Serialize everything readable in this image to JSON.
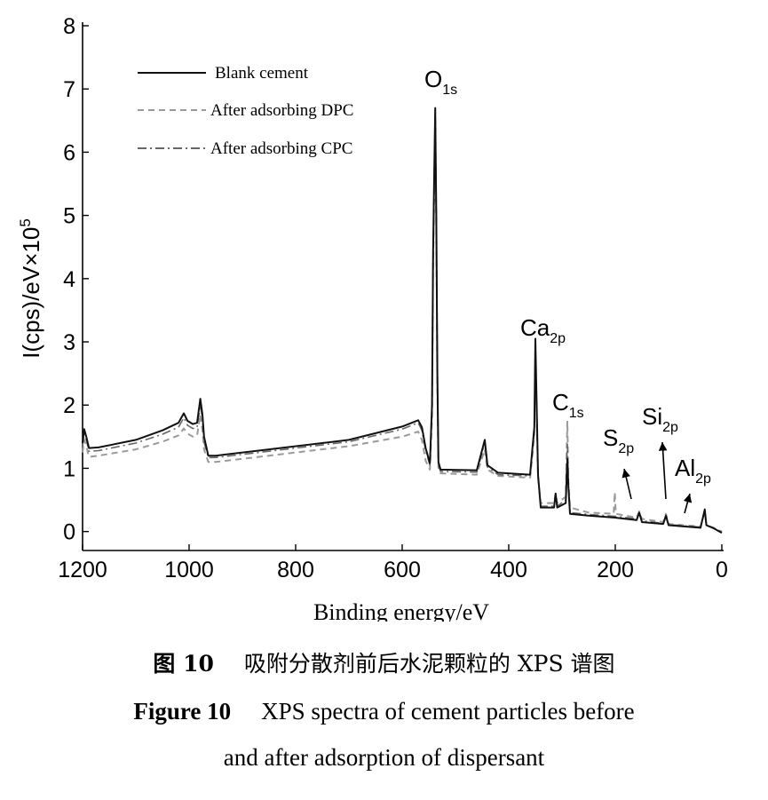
{
  "chart_data": {
    "type": "line",
    "xlabel": "Binding energy/eV",
    "ylabel_main": "I(cps)/eV×10",
    "ylabel_exp": "5",
    "xlim": [
      1200,
      0
    ],
    "ylim": [
      -0.3,
      8
    ],
    "x_ticks": [
      1200,
      1000,
      800,
      600,
      400,
      200,
      0
    ],
    "y_ticks": [
      0,
      1,
      2,
      3,
      4,
      5,
      6,
      7,
      8
    ],
    "legend": [
      {
        "name": "Blank cement",
        "style": "solid"
      },
      {
        "name": "After adsorbing DPC",
        "style": "dashed"
      },
      {
        "name": "After adsorbing CPC",
        "style": "dashdot"
      }
    ],
    "series": [
      {
        "name": "Blank cement",
        "points": [
          [
            1200,
            1.4
          ],
          [
            1197,
            1.62
          ],
          [
            1193,
            1.5
          ],
          [
            1188,
            1.32
          ],
          [
            1170,
            1.33
          ],
          [
            1100,
            1.45
          ],
          [
            1050,
            1.6
          ],
          [
            1020,
            1.72
          ],
          [
            1010,
            1.87
          ],
          [
            1003,
            1.75
          ],
          [
            993,
            1.7
          ],
          [
            985,
            1.72
          ],
          [
            979,
            2.1
          ],
          [
            975,
            1.85
          ],
          [
            972,
            1.5
          ],
          [
            964,
            1.2
          ],
          [
            950,
            1.2
          ],
          [
            850,
            1.3
          ],
          [
            700,
            1.45
          ],
          [
            600,
            1.66
          ],
          [
            570,
            1.76
          ],
          [
            563,
            1.65
          ],
          [
            556,
            1.32
          ],
          [
            548,
            1.08
          ],
          [
            544,
            2.0
          ],
          [
            542,
            4.4
          ],
          [
            540,
            5.6
          ],
          [
            538,
            6.7
          ],
          [
            536,
            5.0
          ],
          [
            534,
            2.5
          ],
          [
            532,
            1.1
          ],
          [
            528,
            0.98
          ],
          [
            460,
            0.97
          ],
          [
            445,
            1.45
          ],
          [
            440,
            1.05
          ],
          [
            420,
            0.93
          ],
          [
            360,
            0.9
          ],
          [
            352,
            1.65
          ],
          [
            350,
            3.05
          ],
          [
            348,
            2.2
          ],
          [
            345,
            0.9
          ],
          [
            340,
            0.38
          ],
          [
            315,
            0.38
          ],
          [
            312,
            0.6
          ],
          [
            309,
            0.38
          ],
          [
            293,
            0.45
          ],
          [
            290,
            1.15
          ],
          [
            288,
            0.7
          ],
          [
            285,
            0.28
          ],
          [
            250,
            0.25
          ],
          [
            200,
            0.22
          ],
          [
            160,
            0.18
          ],
          [
            155,
            0.3
          ],
          [
            150,
            0.15
          ],
          [
            110,
            0.12
          ],
          [
            105,
            0.25
          ],
          [
            100,
            0.1
          ],
          [
            40,
            0.06
          ],
          [
            32,
            0.35
          ],
          [
            29,
            0.1
          ],
          [
            15,
            0.05
          ],
          [
            0,
            -0.02
          ]
        ]
      },
      {
        "name": "After adsorbing DPC",
        "points": [
          [
            1200,
            1.25
          ],
          [
            1197,
            1.45
          ],
          [
            1193,
            1.35
          ],
          [
            1188,
            1.18
          ],
          [
            1170,
            1.2
          ],
          [
            1100,
            1.3
          ],
          [
            1050,
            1.42
          ],
          [
            1020,
            1.52
          ],
          [
            1010,
            1.63
          ],
          [
            1003,
            1.55
          ],
          [
            993,
            1.5
          ],
          [
            985,
            1.52
          ],
          [
            979,
            1.85
          ],
          [
            975,
            1.6
          ],
          [
            972,
            1.3
          ],
          [
            964,
            1.1
          ],
          [
            950,
            1.1
          ],
          [
            850,
            1.2
          ],
          [
            700,
            1.35
          ],
          [
            600,
            1.5
          ],
          [
            570,
            1.58
          ],
          [
            563,
            1.45
          ],
          [
            556,
            1.12
          ],
          [
            548,
            0.98
          ],
          [
            544,
            1.8
          ],
          [
            542,
            4.2
          ],
          [
            540,
            5.3
          ],
          [
            538,
            6.5
          ],
          [
            536,
            4.8
          ],
          [
            534,
            2.3
          ],
          [
            532,
            1.0
          ],
          [
            528,
            0.92
          ],
          [
            460,
            0.9
          ],
          [
            445,
            1.3
          ],
          [
            440,
            0.98
          ],
          [
            420,
            0.88
          ],
          [
            360,
            0.85
          ],
          [
            352,
            1.5
          ],
          [
            350,
            2.7
          ],
          [
            348,
            2.0
          ],
          [
            345,
            0.85
          ],
          [
            340,
            0.45
          ],
          [
            315,
            0.45
          ],
          [
            312,
            0.6
          ],
          [
            309,
            0.45
          ],
          [
            293,
            0.55
          ],
          [
            290,
            1.75
          ],
          [
            288,
            0.8
          ],
          [
            285,
            0.38
          ],
          [
            250,
            0.3
          ],
          [
            203,
            0.28
          ],
          [
            201,
            0.62
          ],
          [
            199,
            0.28
          ],
          [
            160,
            0.22
          ],
          [
            155,
            0.32
          ],
          [
            150,
            0.2
          ],
          [
            110,
            0.15
          ],
          [
            105,
            0.28
          ],
          [
            100,
            0.12
          ],
          [
            40,
            0.08
          ],
          [
            32,
            0.3
          ],
          [
            29,
            0.1
          ],
          [
            15,
            0.06
          ],
          [
            0,
            0.0
          ]
        ]
      },
      {
        "name": "After adsorbing CPC",
        "points": [
          [
            1200,
            1.35
          ],
          [
            1197,
            1.55
          ],
          [
            1193,
            1.45
          ],
          [
            1188,
            1.27
          ],
          [
            1170,
            1.28
          ],
          [
            1100,
            1.4
          ],
          [
            1050,
            1.54
          ],
          [
            1020,
            1.65
          ],
          [
            1010,
            1.8
          ],
          [
            1003,
            1.68
          ],
          [
            993,
            1.63
          ],
          [
            985,
            1.65
          ],
          [
            979,
            2.0
          ],
          [
            975,
            1.78
          ],
          [
            972,
            1.42
          ],
          [
            964,
            1.17
          ],
          [
            950,
            1.17
          ],
          [
            850,
            1.27
          ],
          [
            700,
            1.42
          ],
          [
            600,
            1.62
          ],
          [
            570,
            1.72
          ],
          [
            563,
            1.6
          ],
          [
            556,
            1.28
          ],
          [
            548,
            1.05
          ],
          [
            544,
            1.9
          ],
          [
            542,
            4.3
          ],
          [
            540,
            5.5
          ],
          [
            538,
            6.6
          ],
          [
            536,
            4.9
          ],
          [
            534,
            2.4
          ],
          [
            532,
            1.05
          ],
          [
            528,
            0.95
          ],
          [
            460,
            0.94
          ],
          [
            445,
            1.4
          ],
          [
            440,
            1.02
          ],
          [
            420,
            0.9
          ],
          [
            360,
            0.88
          ],
          [
            352,
            1.6
          ],
          [
            350,
            2.9
          ],
          [
            348,
            2.1
          ],
          [
            345,
            0.88
          ],
          [
            340,
            0.4
          ],
          [
            315,
            0.4
          ],
          [
            312,
            0.58
          ],
          [
            309,
            0.4
          ],
          [
            293,
            0.5
          ],
          [
            290,
            1.4
          ],
          [
            288,
            0.75
          ],
          [
            285,
            0.3
          ],
          [
            250,
            0.27
          ],
          [
            200,
            0.24
          ],
          [
            160,
            0.2
          ],
          [
            155,
            0.3
          ],
          [
            150,
            0.17
          ],
          [
            110,
            0.13
          ],
          [
            105,
            0.26
          ],
          [
            100,
            0.11
          ],
          [
            40,
            0.07
          ],
          [
            32,
            0.32
          ],
          [
            29,
            0.1
          ],
          [
            15,
            0.05
          ],
          [
            0,
            -0.01
          ]
        ]
      }
    ],
    "annotations": [
      {
        "main": "O",
        "sub": "1s",
        "x": 538,
        "y": 6.7
      },
      {
        "main": "Ca",
        "sub": "2p",
        "x": 350,
        "y": 3.05
      },
      {
        "main": "C",
        "sub": "1s",
        "x": 290,
        "y": 1.75
      },
      {
        "main": "S",
        "sub": "2p",
        "x": 155,
        "y": 0.3
      },
      {
        "main": "Si",
        "sub": "2p",
        "x": 105,
        "y": 0.25
      },
      {
        "main": "Al",
        "sub": "2p",
        "x": 75,
        "y": 0.3
      }
    ]
  },
  "caption": {
    "zh_label": "图 10",
    "zh_text": "吸附分散剂前后水泥颗粒的 XPS 谱图",
    "en_label": "Figure 10",
    "en_text_line1": "XPS spectra of cement particles before",
    "en_text_line2": "and after adsorption of dispersant"
  },
  "colors": {
    "blank": "#111111",
    "dpc": "#9a9a9a",
    "cpc": "#666666",
    "axis": "#000000"
  }
}
